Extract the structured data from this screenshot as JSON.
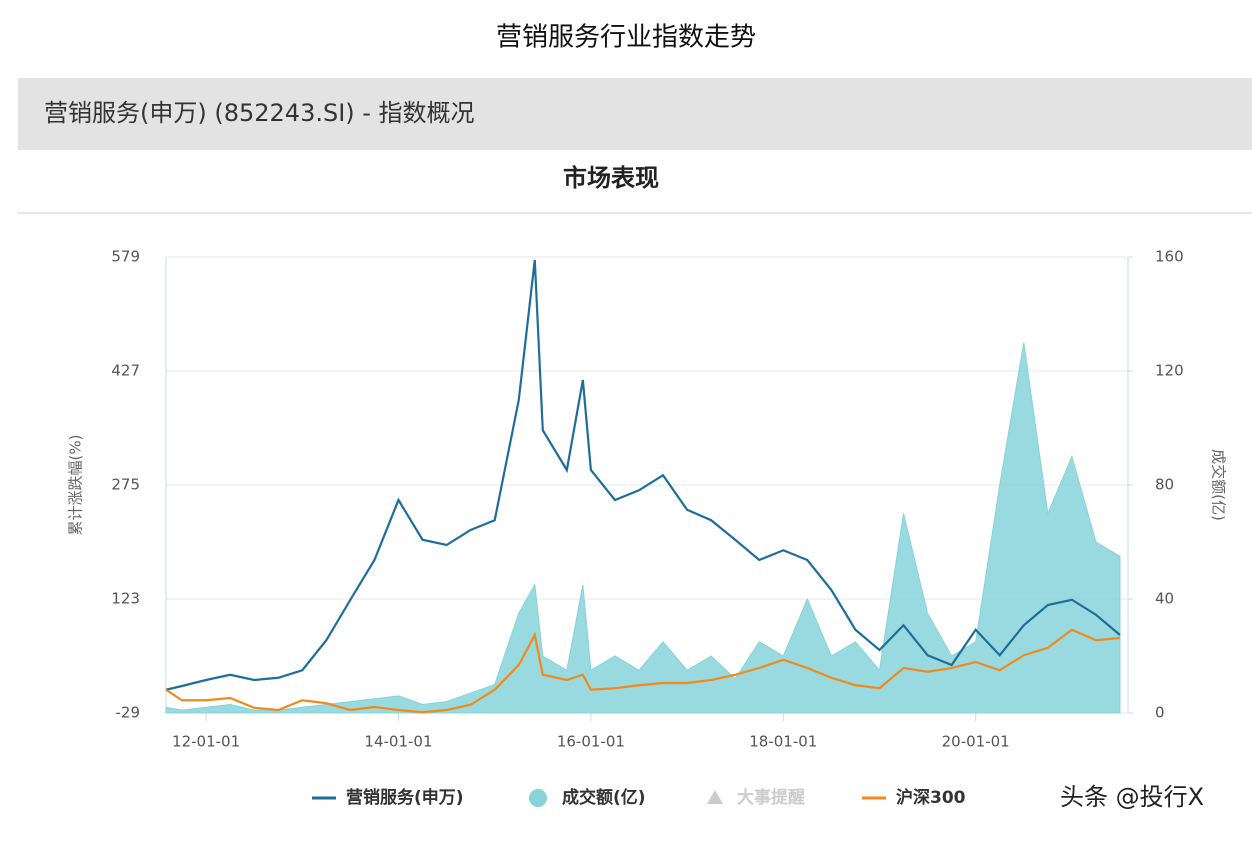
{
  "page_title": "营销服务行业指数走势",
  "panel_header": "营销服务(申万) (852243.SI) - 指数概况",
  "section_title": "市场表现",
  "watermark": "头条 @投行X",
  "chart_data": {
    "type": "line",
    "y_label": "累计涨跌幅(%)",
    "y2_label": "成交额(亿)",
    "events_label": "大事提醒",
    "x": [
      "11-08-01",
      "11-10-01",
      "12-01-01",
      "12-04-01",
      "12-07-01",
      "12-10-01",
      "13-01-01",
      "13-04-01",
      "13-07-01",
      "13-10-01",
      "14-01-01",
      "14-04-01",
      "14-07-01",
      "14-10-01",
      "15-01-01",
      "15-04-01",
      "15-06-01",
      "15-07-01",
      "15-10-01",
      "15-12-01",
      "16-01-01",
      "16-04-01",
      "16-07-01",
      "16-10-01",
      "17-01-01",
      "17-04-01",
      "17-07-01",
      "17-10-01",
      "18-01-01",
      "18-04-01",
      "18-07-01",
      "18-10-01",
      "19-01-01",
      "19-04-01",
      "19-07-01",
      "19-10-01",
      "20-01-01",
      "20-04-01",
      "20-07-01",
      "20-10-01",
      "21-01-01",
      "21-04-01",
      "21-07-01"
    ],
    "series": [
      {
        "name": "营销服务(申万)",
        "color": "#1f6e99",
        "type": "line",
        "values": [
          2,
          7,
          15,
          22,
          15,
          18,
          28,
          68,
          122,
          175,
          255,
          202,
          195,
          215,
          228,
          388,
          575,
          348,
          295,
          415,
          295,
          255,
          268,
          288,
          242,
          228,
          202,
          175,
          188,
          175,
          135,
          82,
          55,
          88,
          48,
          35,
          82,
          48,
          88,
          115,
          122,
          102,
          75
        ]
      },
      {
        "name": "成交额(亿)",
        "color": "#86d3da",
        "type": "area",
        "axis": "y2",
        "values": [
          2,
          1,
          2,
          3,
          1,
          1,
          2,
          3,
          4,
          5,
          6,
          3,
          4,
          7,
          10,
          35,
          45,
          20,
          15,
          45,
          15,
          20,
          15,
          25,
          15,
          20,
          12,
          25,
          20,
          40,
          20,
          25,
          15,
          70,
          35,
          20,
          25,
          80,
          130,
          70,
          90,
          60,
          55
        ]
      },
      {
        "name": "沪深300",
        "color": "#f08a1c",
        "type": "line",
        "values": [
          2,
          -12,
          -12,
          -9,
          -22,
          -25,
          -12,
          -16,
          -25,
          -21,
          -25,
          -28,
          -25,
          -18,
          2,
          35,
          75,
          22,
          15,
          22,
          2,
          4,
          8,
          11,
          11,
          15,
          22,
          31,
          42,
          31,
          18,
          8,
          4,
          31,
          26,
          31,
          39,
          28,
          48,
          58,
          82,
          68,
          71
        ]
      }
    ],
    "xlim": [
      "11-08-01",
      "21-08-01"
    ],
    "xticks": [
      "12-01-01",
      "14-01-01",
      "16-01-01",
      "18-01-01",
      "20-01-01"
    ],
    "ylim": [
      -29,
      579
    ],
    "yticks": [
      -29,
      123,
      275,
      427,
      579
    ],
    "y2lim": [
      0,
      160
    ],
    "y2ticks": [
      0,
      40,
      80,
      120,
      160
    ],
    "grid": true
  }
}
